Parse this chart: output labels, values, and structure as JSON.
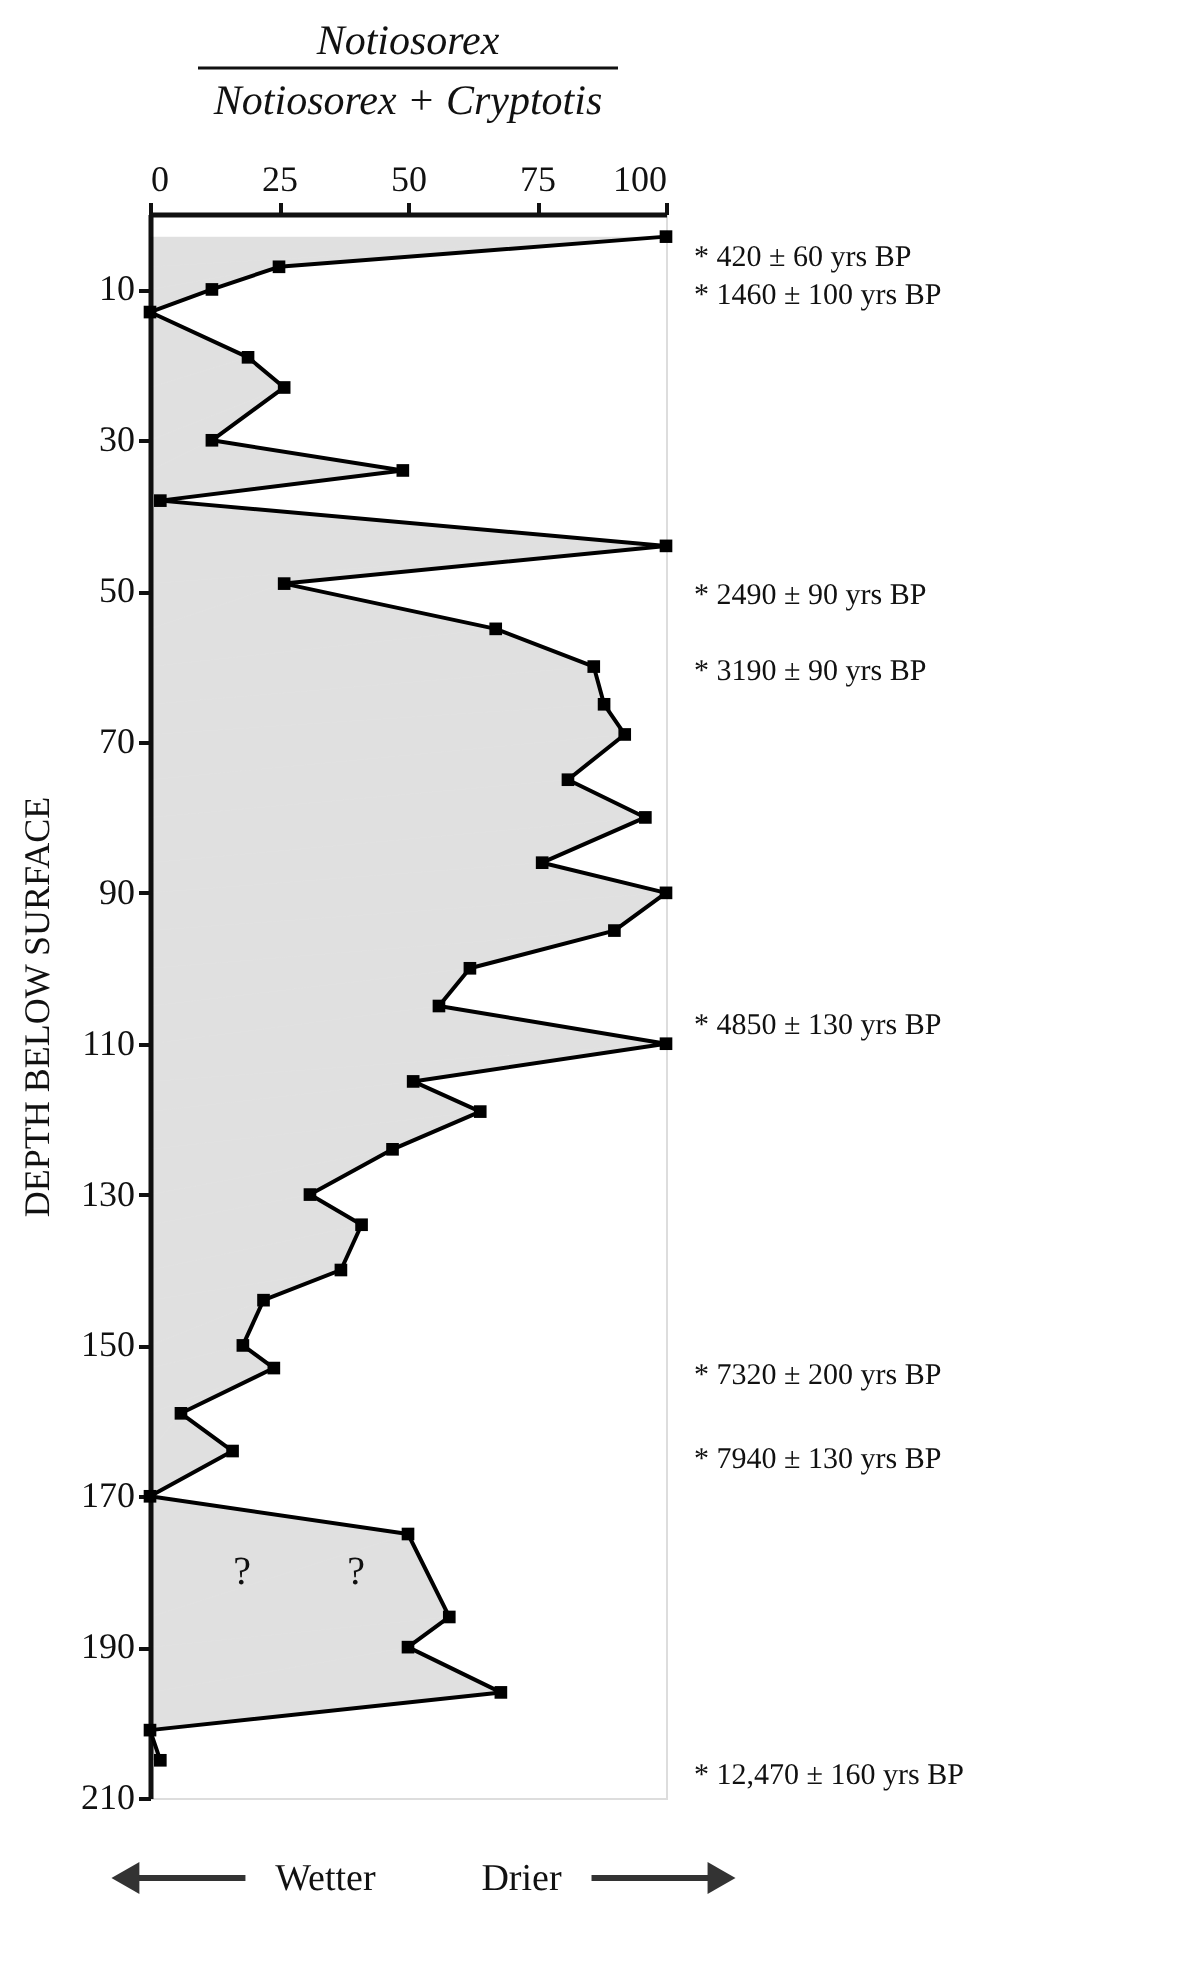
{
  "chart_data": {
    "type": "area",
    "orientation": "horizontal",
    "title": "Notiosorex",
    "subtitle": "Notiosorex + Cryptotis",
    "ylabel": "DEPTH BELOW SURFACE",
    "x": [
      3,
      7,
      10,
      13,
      19,
      23,
      30,
      34,
      38,
      44,
      49,
      55,
      60,
      65,
      69,
      75,
      80,
      86,
      90,
      95,
      100,
      105,
      110,
      115,
      119,
      124,
      130,
      134,
      140,
      144,
      150,
      153,
      159,
      164,
      170,
      175,
      186,
      190,
      196,
      201,
      205
    ],
    "series": [
      {
        "color": "#000000",
        "values": [
          100,
          25,
          12,
          0,
          19,
          26,
          12,
          49,
          2,
          100,
          26,
          67,
          86,
          88,
          92,
          81,
          96,
          76,
          100,
          90,
          62,
          56,
          100,
          51,
          64,
          47,
          31,
          41,
          37,
          22,
          18,
          24,
          6,
          16,
          0,
          50,
          58,
          50,
          68,
          0,
          2
        ]
      }
    ],
    "xlim": [
      0,
      100
    ],
    "xticks": [
      0,
      25,
      50,
      75,
      100
    ],
    "ylim": [
      210,
      0
    ],
    "yticks": [
      10,
      30,
      50,
      70,
      90,
      110,
      130,
      150,
      170,
      190,
      210
    ],
    "marker": "square",
    "grid": false,
    "annotations": [
      "* 420 ± 60 yrs BP",
      "* 1460 ± 100 yrs BP",
      "* 2490 ± 90 yrs BP",
      "* 3190 ± 90 yrs BP",
      "* 4850 ± 130 yrs BP",
      "* 7320 ± 200 yrs BP",
      "* 7940 ± 130 yrs BP",
      "* 12,470 ± 160 yrs BP",
      "?",
      "?",
      "Wetter",
      "Drier"
    ]
  }
}
